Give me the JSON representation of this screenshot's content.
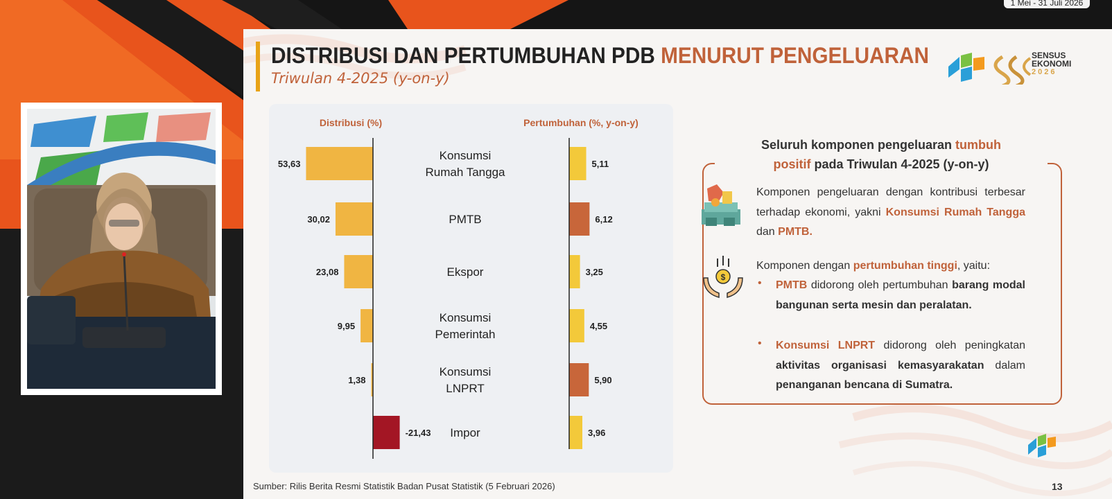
{
  "stream": {
    "date_range": "1 Mei - 31 Juli 2026"
  },
  "slide": {
    "title_main": "DISTRIBUSI DAN PERTUMBUHAN PDB",
    "title_accent": "MENURUT PENGELUARAN",
    "subtitle": "Triwulan 4-2025 (y-on-y)",
    "logo_line1": "SENSUS",
    "logo_line2": "EKONOMI",
    "logo_line3": "2026",
    "footer": "Sumber: Rilis Berita Resmi Statistik Badan Pusat Statistik (5 Februari 2026)",
    "page_number": "13"
  },
  "info": {
    "heading_part1": "Seluruh komponen pengeluaran",
    "heading_accent1": "tumbuh",
    "heading_accent2": "positif",
    "heading_part2": "pada Triwulan 4-2025 (y-on-y)",
    "p1_text": "Komponen pengeluaran dengan kontribusi terbesar terhadap ekonomi, yakni",
    "p1_accent1": "Konsumsi Rumah Tangga",
    "p1_and": "dan",
    "p1_accent2": "PMTB.",
    "p2_text": "Komponen dengan",
    "p2_accent": "pertumbuhan tinggi",
    "p2_tail": ", yaitu:",
    "b1_accent": "PMTB",
    "b1_text": "didorong oleh pertumbuhan",
    "b1_bold": "barang modal bangunan serta mesin dan peralatan.",
    "b2_accent": "Konsumsi LNPRT",
    "b2_text": "didorong oleh peningkatan",
    "b2_bold1": "aktivitas organisasi kemasyarakatan",
    "b2_mid": "dalam",
    "b2_bold2": "penanganan bencana di Sumatra."
  },
  "colors": {
    "accent": "#c0623a",
    "bar_yellow": "#f0b542",
    "bar_growth_yellow": "#f3c93a",
    "bar_growth_orange": "#c8663a",
    "bar_negative": "#a31624"
  },
  "chart_data": [
    {
      "type": "bar",
      "title": "Distribusi (%)",
      "categories": [
        "Konsumsi Rumah Tangga",
        "PMTB",
        "Ekspor",
        "Konsumsi Pemerintah",
        "Konsumsi LNPRT",
        "Impor"
      ],
      "category_lines": [
        [
          "Konsumsi",
          "Rumah Tangga"
        ],
        [
          "PMTB"
        ],
        [
          "Ekspor"
        ],
        [
          "Konsumsi",
          "Pemerintah"
        ],
        [
          "Konsumsi",
          "LNPRT"
        ],
        [
          "Impor"
        ]
      ],
      "values": [
        53.63,
        30.02,
        23.08,
        9.95,
        1.38,
        -21.43
      ],
      "value_labels": [
        "53,63",
        "30,02",
        "23,08",
        "9,95",
        "1,38",
        "-21,43"
      ],
      "orientation": "horizontal",
      "direction": "positive-left"
    },
    {
      "type": "bar",
      "title": "Pertumbuhan (%, y-on-y)",
      "categories": [
        "Konsumsi Rumah Tangga",
        "PMTB",
        "Ekspor",
        "Konsumsi Pemerintah",
        "Konsumsi LNPRT",
        "Impor"
      ],
      "values": [
        5.11,
        6.12,
        3.25,
        4.55,
        5.9,
        3.96
      ],
      "value_labels": [
        "5,11",
        "6,12",
        "3,25",
        "4,55",
        "5,90",
        "3,96"
      ],
      "highlight": [
        false,
        true,
        false,
        false,
        true,
        false
      ],
      "orientation": "horizontal"
    }
  ]
}
